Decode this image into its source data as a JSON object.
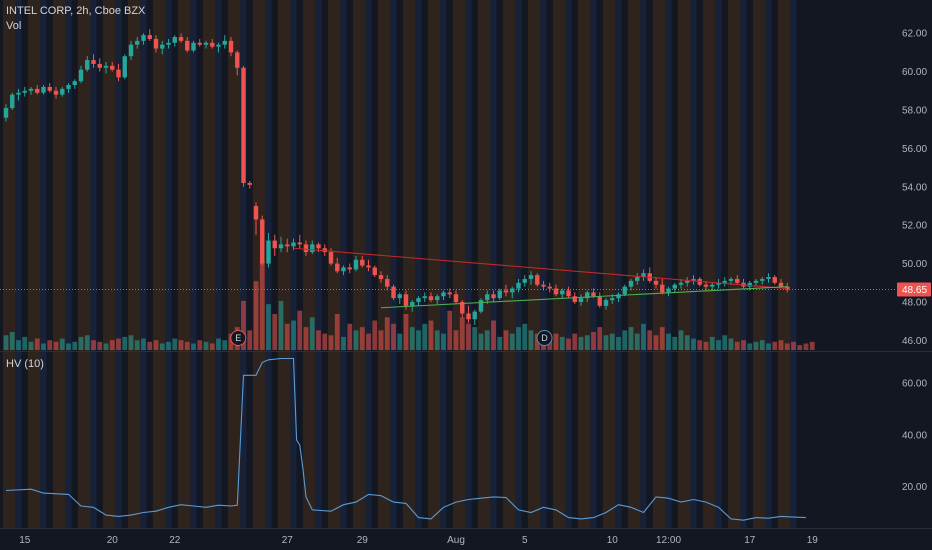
{
  "header": {
    "symbol_line": "INTEL CORP, 2h, Cboe BZX",
    "volume_label": "Vol"
  },
  "indicator": {
    "label": "HV (10)"
  },
  "colors": {
    "background": "#131722",
    "up": "#26a69a",
    "down": "#ef5350",
    "session_orange": "#3a2a1c",
    "session_blue": "#1a2640",
    "hv_line": "#5b9bd5",
    "trend_upper": "#c62828",
    "trend_lower": "#4caf50",
    "last_price": "#ef5350"
  },
  "chart_data": [
    {
      "type": "candlestick",
      "title": "",
      "symbol": "INTEL CORP",
      "interval": "2h",
      "exchange": "Cboe BZX",
      "y_ticks": [
        "62.00",
        "60.00",
        "58.00",
        "56.00",
        "54.00",
        "52.00",
        "50.00",
        "48.00",
        "46.00"
      ],
      "ylim": [
        45.5,
        63
      ],
      "last_price": "48.65",
      "x_ticks": [
        {
          "label": "15",
          "index": 3
        },
        {
          "label": "20",
          "index": 17
        },
        {
          "label": "22",
          "index": 27
        },
        {
          "label": "27",
          "index": 45
        },
        {
          "label": "29",
          "index": 57
        },
        {
          "label": "Aug",
          "index": 72
        },
        {
          "label": "5",
          "index": 83
        },
        {
          "label": "10",
          "index": 97
        },
        {
          "label": "12:00",
          "index": 106
        },
        {
          "label": "17",
          "index": 119
        },
        {
          "label": "19",
          "index": 129
        }
      ],
      "events": [
        {
          "label": "E",
          "index": 37
        },
        {
          "label": "D",
          "index": 86
        }
      ],
      "trendlines": [
        {
          "name": "upper",
          "from": {
            "index": 46,
            "value": 50.8
          },
          "to": {
            "index": 125,
            "value": 48.7
          }
        },
        {
          "name": "lower",
          "from": {
            "index": 60,
            "value": 47.7
          },
          "to": {
            "index": 125,
            "value": 48.8
          }
        }
      ],
      "ohlc": [
        [
          57.6,
          58.3,
          57.4,
          58.1
        ],
        [
          58.1,
          58.9,
          58.0,
          58.8
        ],
        [
          58.8,
          59.1,
          58.5,
          58.9
        ],
        [
          58.9,
          59.2,
          58.7,
          59.0
        ],
        [
          59.0,
          59.2,
          58.8,
          59.1
        ],
        [
          59.1,
          59.3,
          58.8,
          58.9
        ],
        [
          58.9,
          59.3,
          58.8,
          59.2
        ],
        [
          59.2,
          59.4,
          58.9,
          59.0
        ],
        [
          59.0,
          59.2,
          58.6,
          58.8
        ],
        [
          58.8,
          59.2,
          58.7,
          59.1
        ],
        [
          59.1,
          59.4,
          58.9,
          59.3
        ],
        [
          59.3,
          59.6,
          59.1,
          59.5
        ],
        [
          59.5,
          60.3,
          59.4,
          60.1
        ],
        [
          60.1,
          60.8,
          60.0,
          60.6
        ],
        [
          60.6,
          60.9,
          60.2,
          60.4
        ],
        [
          60.4,
          60.7,
          60.0,
          60.2
        ],
        [
          60.2,
          60.5,
          59.9,
          60.3
        ],
        [
          60.3,
          60.5,
          60.0,
          60.1
        ],
        [
          60.1,
          60.4,
          59.5,
          59.7
        ],
        [
          59.7,
          60.9,
          59.6,
          60.8
        ],
        [
          60.8,
          61.6,
          60.6,
          61.4
        ],
        [
          61.4,
          61.8,
          61.2,
          61.6
        ],
        [
          61.6,
          62.0,
          61.4,
          61.9
        ],
        [
          61.9,
          62.2,
          61.6,
          61.7
        ],
        [
          61.7,
          61.9,
          61.0,
          61.2
        ],
        [
          61.2,
          61.6,
          60.9,
          61.4
        ],
        [
          61.4,
          61.7,
          61.2,
          61.5
        ],
        [
          61.5,
          61.9,
          61.3,
          61.8
        ],
        [
          61.8,
          62.0,
          61.5,
          61.6
        ],
        [
          61.6,
          61.8,
          61.0,
          61.1
        ],
        [
          61.1,
          61.6,
          61.0,
          61.5
        ],
        [
          61.5,
          61.7,
          61.3,
          61.4
        ],
        [
          61.4,
          61.6,
          61.2,
          61.5
        ],
        [
          61.5,
          61.7,
          61.2,
          61.3
        ],
        [
          61.3,
          61.5,
          61.0,
          61.4
        ],
        [
          61.4,
          61.9,
          61.2,
          61.6
        ],
        [
          61.6,
          61.8,
          60.8,
          61.0
        ],
        [
          61.0,
          61.1,
          59.8,
          60.2
        ],
        [
          60.2,
          60.3,
          54.0,
          54.2
        ],
        [
          54.2,
          54.3,
          53.9,
          54.1
        ],
        [
          53.0,
          53.2,
          51.5,
          52.3
        ],
        [
          52.3,
          52.5,
          49.9,
          50.0
        ],
        [
          50.0,
          51.6,
          49.8,
          51.2
        ],
        [
          51.2,
          51.5,
          50.4,
          50.8
        ],
        [
          50.8,
          51.4,
          50.6,
          51.0
        ],
        [
          51.0,
          51.3,
          50.6,
          50.9
        ],
        [
          50.9,
          51.3,
          50.7,
          51.1
        ],
        [
          51.1,
          51.5,
          50.8,
          51.0
        ],
        [
          51.0,
          51.2,
          50.4,
          50.6
        ],
        [
          50.6,
          51.2,
          50.5,
          51.0
        ],
        [
          51.0,
          51.1,
          50.6,
          50.8
        ],
        [
          50.8,
          51.0,
          50.4,
          50.6
        ],
        [
          50.6,
          50.8,
          49.9,
          50.0
        ],
        [
          50.0,
          50.3,
          49.5,
          49.6
        ],
        [
          49.6,
          49.9,
          49.4,
          49.8
        ],
        [
          49.8,
          50.0,
          49.5,
          49.7
        ],
        [
          49.7,
          50.4,
          49.6,
          50.2
        ],
        [
          50.2,
          50.4,
          49.8,
          49.9
        ],
        [
          49.9,
          50.2,
          49.6,
          49.8
        ],
        [
          49.8,
          49.9,
          49.3,
          49.4
        ],
        [
          49.4,
          49.6,
          49.0,
          49.2
        ],
        [
          49.2,
          49.4,
          48.6,
          48.8
        ],
        [
          48.8,
          48.9,
          48.1,
          48.2
        ],
        [
          48.2,
          48.5,
          47.9,
          48.4
        ],
        [
          48.4,
          48.6,
          47.6,
          47.8
        ],
        [
          47.8,
          48.1,
          47.5,
          48.0
        ],
        [
          48.0,
          48.3,
          47.8,
          48.2
        ],
        [
          48.2,
          48.5,
          48.0,
          48.3
        ],
        [
          48.3,
          48.5,
          48.0,
          48.1
        ],
        [
          48.1,
          48.4,
          47.9,
          48.3
        ],
        [
          48.3,
          48.6,
          48.1,
          48.5
        ],
        [
          48.5,
          48.7,
          48.2,
          48.4
        ],
        [
          48.4,
          48.6,
          47.9,
          48.0
        ],
        [
          48.0,
          48.1,
          47.2,
          47.4
        ],
        [
          47.4,
          47.8,
          46.9,
          47.1
        ],
        [
          47.1,
          47.6,
          46.8,
          47.5
        ],
        [
          47.5,
          48.2,
          47.4,
          48.1
        ],
        [
          48.1,
          48.6,
          47.9,
          48.4
        ],
        [
          48.4,
          48.6,
          48.0,
          48.2
        ],
        [
          48.2,
          48.7,
          48.1,
          48.6
        ],
        [
          48.6,
          48.9,
          48.3,
          48.5
        ],
        [
          48.5,
          48.8,
          48.2,
          48.7
        ],
        [
          48.7,
          49.2,
          48.5,
          49.0
        ],
        [
          49.0,
          49.4,
          48.8,
          49.2
        ],
        [
          49.2,
          49.6,
          48.9,
          49.4
        ],
        [
          49.4,
          49.5,
          48.8,
          48.9
        ],
        [
          48.9,
          49.1,
          48.6,
          48.8
        ],
        [
          48.8,
          49.0,
          48.5,
          48.7
        ],
        [
          48.7,
          48.9,
          48.3,
          48.4
        ],
        [
          48.4,
          48.7,
          48.2,
          48.6
        ],
        [
          48.6,
          48.8,
          48.2,
          48.3
        ],
        [
          48.3,
          48.5,
          47.9,
          48.0
        ],
        [
          48.0,
          48.4,
          47.8,
          48.2
        ],
        [
          48.2,
          48.6,
          48.0,
          48.5
        ],
        [
          48.5,
          48.7,
          48.2,
          48.3
        ],
        [
          48.3,
          48.5,
          47.7,
          47.8
        ],
        [
          47.8,
          48.2,
          47.6,
          48.1
        ],
        [
          48.1,
          48.4,
          47.9,
          48.2
        ],
        [
          48.2,
          48.5,
          48.0,
          48.4
        ],
        [
          48.4,
          48.9,
          48.3,
          48.8
        ],
        [
          48.8,
          49.2,
          48.6,
          49.1
        ],
        [
          49.1,
          49.5,
          48.9,
          49.3
        ],
        [
          49.3,
          49.7,
          49.1,
          49.5
        ],
        [
          49.5,
          49.8,
          49.0,
          49.1
        ],
        [
          49.1,
          49.3,
          48.7,
          48.9
        ],
        [
          48.9,
          49.2,
          48.4,
          48.5
        ],
        [
          48.5,
          48.8,
          48.3,
          48.7
        ],
        [
          48.7,
          49.0,
          48.5,
          48.9
        ],
        [
          48.9,
          49.2,
          48.7,
          49.0
        ],
        [
          49.0,
          49.3,
          48.8,
          49.1
        ],
        [
          49.1,
          49.4,
          48.9,
          49.2
        ],
        [
          49.2,
          49.3,
          48.8,
          48.9
        ],
        [
          48.9,
          49.1,
          48.6,
          48.8
        ],
        [
          48.8,
          49.0,
          48.6,
          48.9
        ],
        [
          48.9,
          49.2,
          48.7,
          49.0
        ],
        [
          49.0,
          49.3,
          48.8,
          49.1
        ],
        [
          49.1,
          49.3,
          48.9,
          49.2
        ],
        [
          49.2,
          49.4,
          48.9,
          49.0
        ],
        [
          49.0,
          49.2,
          48.7,
          48.8
        ],
        [
          48.8,
          49.1,
          48.6,
          49.0
        ],
        [
          49.0,
          49.2,
          48.8,
          49.1
        ],
        [
          49.1,
          49.3,
          48.9,
          49.2
        ],
        [
          49.2,
          49.5,
          49.0,
          49.3
        ],
        [
          49.3,
          49.4,
          48.9,
          49.0
        ],
        [
          49.0,
          49.2,
          48.7,
          48.8
        ],
        [
          48.8,
          49.0,
          48.5,
          48.65
        ]
      ],
      "volume": [
        9,
        11,
        6,
        8,
        5,
        7,
        4,
        6,
        5,
        7,
        4,
        5,
        8,
        9,
        6,
        5,
        4,
        6,
        7,
        8,
        9,
        6,
        7,
        5,
        6,
        4,
        5,
        7,
        6,
        5,
        4,
        6,
        5,
        4,
        7,
        6,
        10,
        14,
        30,
        12,
        42,
        55,
        28,
        22,
        30,
        16,
        18,
        24,
        14,
        20,
        12,
        10,
        9,
        22,
        8,
        16,
        12,
        14,
        10,
        18,
        12,
        20,
        16,
        10,
        22,
        14,
        12,
        16,
        18,
        12,
        10,
        24,
        12,
        20,
        16,
        14,
        10,
        12,
        18,
        8,
        12,
        10,
        14,
        16,
        12,
        10,
        8,
        9,
        10,
        8,
        7,
        10,
        8,
        9,
        11,
        14,
        9,
        10,
        8,
        12,
        14,
        10,
        16,
        12,
        9,
        14,
        10,
        8,
        12,
        9,
        7,
        6,
        5,
        8,
        6,
        9,
        7,
        5,
        6,
        4,
        5,
        6,
        4,
        5,
        6,
        4,
        5,
        3,
        4,
        5
      ],
      "hv": [
        [
          0,
          18.5
        ],
        [
          4,
          19
        ],
        [
          6,
          17.5
        ],
        [
          10,
          17
        ],
        [
          12,
          12.5
        ],
        [
          14,
          12
        ],
        [
          16,
          9
        ],
        [
          18,
          8.5
        ],
        [
          20,
          9
        ],
        [
          22,
          10
        ],
        [
          24,
          10.5
        ],
        [
          26,
          12
        ],
        [
          28,
          13
        ],
        [
          30,
          12.5
        ],
        [
          32,
          12
        ],
        [
          34,
          12.8
        ],
        [
          36,
          12.5
        ],
        [
          37,
          12.8
        ],
        [
          38,
          63
        ],
        [
          40,
          63
        ],
        [
          41,
          68
        ],
        [
          42,
          69
        ],
        [
          44,
          69.5
        ],
        [
          46,
          69.5
        ],
        [
          46.5,
          38
        ],
        [
          47,
          36
        ],
        [
          47.5,
          27
        ],
        [
          48,
          16
        ],
        [
          49,
          11
        ],
        [
          52,
          10.5
        ],
        [
          54,
          13
        ],
        [
          56,
          14
        ],
        [
          58,
          17
        ],
        [
          60,
          16.5
        ],
        [
          62,
          14
        ],
        [
          64,
          13.5
        ],
        [
          66,
          8
        ],
        [
          68,
          7.5
        ],
        [
          70,
          12
        ],
        [
          72,
          14
        ],
        [
          74,
          15
        ],
        [
          76,
          15.5
        ],
        [
          78,
          16
        ],
        [
          80,
          15.8
        ],
        [
          82,
          11
        ],
        [
          84,
          10
        ],
        [
          86,
          12
        ],
        [
          88,
          11
        ],
        [
          90,
          8
        ],
        [
          92,
          7.5
        ],
        [
          94,
          8
        ],
        [
          96,
          10
        ],
        [
          98,
          13
        ],
        [
          100,
          12
        ],
        [
          102,
          10
        ],
        [
          104,
          16
        ],
        [
          106,
          15.5
        ],
        [
          108,
          14
        ],
        [
          110,
          15
        ],
        [
          112,
          14
        ],
        [
          114,
          12
        ],
        [
          116,
          7.5
        ],
        [
          118,
          7
        ],
        [
          120,
          8
        ],
        [
          122,
          7.8
        ],
        [
          124,
          8.5
        ],
        [
          126,
          8.2
        ],
        [
          128,
          8
        ]
      ],
      "hv_ticks": [
        "60.00",
        "40.00",
        "20.00"
      ],
      "hv_ylim": [
        4,
        72
      ]
    }
  ]
}
